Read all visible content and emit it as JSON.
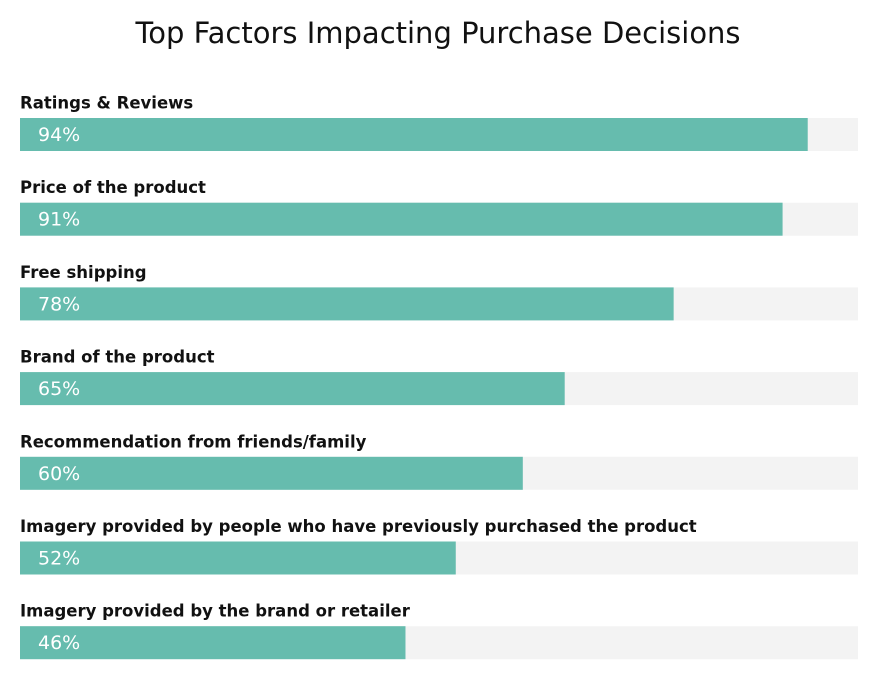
{
  "chart_data": {
    "type": "bar",
    "orientation": "horizontal",
    "title": "Top Factors Impacting Purchase Decisions",
    "categories": [
      "Ratings & Reviews",
      "Price of the product",
      "Free shipping",
      "Brand of the product",
      "Recommendation from friends/family",
      "Imagery provided by people who have previously purchased the product",
      "Imagery provided by the brand or retailer"
    ],
    "values": [
      94,
      91,
      78,
      65,
      60,
      52,
      46
    ],
    "value_labels": [
      "94%",
      "91%",
      "78%",
      "65%",
      "60%",
      "52%",
      "46%"
    ],
    "color": "#66bcae",
    "track_color": "#f3f3f3",
    "xlim": [
      0,
      100
    ]
  }
}
